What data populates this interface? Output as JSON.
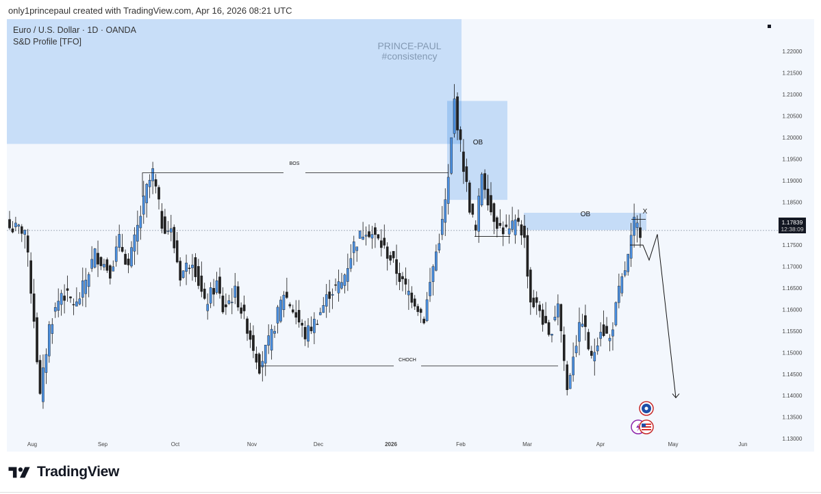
{
  "header": {
    "caption": "only1princepaul created with TradingView.com, Apr 16, 2026 08:21 UTC"
  },
  "legend": {
    "symbol": "Euro / U.S. Dollar · 1D · OANDA",
    "indicator": "S&D Profile [TFO]"
  },
  "watermark": {
    "line1": "PRINCE-PAUL",
    "line2": "#consistency"
  },
  "annotations": {
    "bos": "BOS",
    "choch": "CHOCH",
    "ob1": "OB",
    "ob2": "OB",
    "x_mark": "X"
  },
  "price_tag": {
    "price": "1.17839",
    "countdown": "12:38:09"
  },
  "footer": {
    "brand": "TradingView"
  },
  "colors": {
    "bull": "#4a8fe0",
    "bear": "#222222",
    "zone": "#b9d5f5",
    "zone_strong": "#90bdf0",
    "panel_bg": "#f3f7fd"
  },
  "chart_data": {
    "type": "candlestick",
    "symbol": "EURUSD",
    "timeframe": "1D",
    "x_labels": [
      "Aug",
      "Sep",
      "Oct",
      "Nov",
      "Dec",
      "2026",
      "Feb",
      "Mar",
      "Apr",
      "May",
      "Jun"
    ],
    "y_ticks": [
      "1.22000",
      "1.21500",
      "1.21000",
      "1.20500",
      "1.20000",
      "1.19500",
      "1.19000",
      "1.18500",
      "1.18000",
      "1.17500",
      "1.17000",
      "1.16500",
      "1.16000",
      "1.15500",
      "1.15000",
      "1.14500",
      "1.14000",
      "1.13500",
      "1.13000"
    ],
    "ylim": [
      1.127,
      1.2275
    ],
    "last_price": 1.17839,
    "key_points": [
      {
        "label": "late Jul low",
        "value": 1.1395
      },
      {
        "label": "Sep high",
        "value": 1.1918
      },
      {
        "label": "Nov low",
        "value": 1.1469
      },
      {
        "label": "Jan peak",
        "value": 1.2085
      },
      {
        "label": "Mar low",
        "value": 1.1412
      },
      {
        "label": "Apr current",
        "value": 1.1784
      }
    ],
    "levels": {
      "bos": 1.1918,
      "choch": 1.1469
    },
    "zones": [
      {
        "name": "supply",
        "top": 1.2275,
        "bottom": 1.1985
      },
      {
        "name": "OB",
        "top": 1.2085,
        "bottom": 1.1855
      },
      {
        "name": "OB",
        "top": 1.1825,
        "bottom": 1.1785
      }
    ],
    "projection": [
      1.175,
      1.1715,
      1.1775,
      1.1395
    ]
  }
}
